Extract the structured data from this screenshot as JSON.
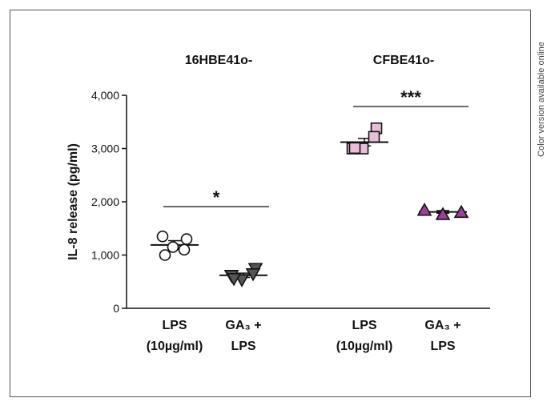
{
  "side_note": "Color version available online",
  "chart_data": {
    "type": "scatter",
    "ylabel": "IL-8 release (pg/ml)",
    "ylim": [
      0,
      4000
    ],
    "yticks": [
      0,
      1000,
      2000,
      3000,
      4000
    ],
    "ytick_labels": [
      "0",
      "1,000",
      "2,000",
      "3,000",
      "4,000"
    ],
    "groups": [
      {
        "name": "16HBE41o-",
        "significance": "*",
        "series": [
          {
            "cat_line1": "LPS",
            "cat_line2": "(10µg/ml)",
            "marker": "circle",
            "color": "#ffffff",
            "points": [
              1350,
              1150,
              1300,
              1000,
              1100
            ],
            "mean": 1190,
            "sem": 80
          },
          {
            "cat_line1": "GA₃ +",
            "cat_line2": "LPS",
            "marker": "triangle-down",
            "color": "#555555",
            "points": [
              620,
              540,
              750,
              560,
              650
            ],
            "mean": 620,
            "sem": 40
          }
        ]
      },
      {
        "name": "CFBE41o-",
        "significance": "***",
        "series": [
          {
            "cat_line1": "LPS",
            "cat_line2": "(10µg/ml)",
            "marker": "square",
            "color": "#e8bfd6",
            "points": [
              3000,
              3000,
              3380,
              3010,
              3220
            ],
            "mean": 3120,
            "sem": 70
          },
          {
            "cat_line1": "GA₃ +",
            "cat_line2": "LPS",
            "marker": "triangle-up",
            "color": "#9b3f98",
            "points": [
              1840,
              1760,
              1800
            ],
            "mean": 1810,
            "sem": 25
          }
        ]
      }
    ]
  }
}
